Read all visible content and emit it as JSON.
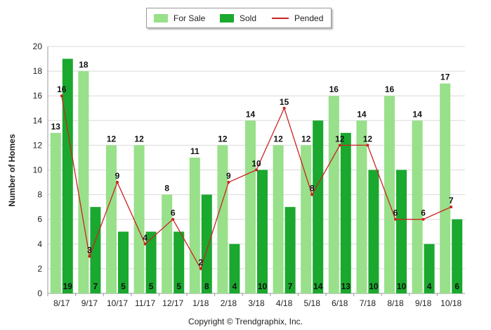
{
  "legend": {
    "for_sale": "For Sale",
    "sold": "Sold",
    "pended": "Pended"
  },
  "copyright": "Copyright © Trendgraphix, Inc.",
  "colors": {
    "for_sale": "#98e08a",
    "sold": "#1aa82e",
    "pended": "#cc2222"
  },
  "chart_data": {
    "type": "bar",
    "categories": [
      "8/17",
      "9/17",
      "10/17",
      "11/17",
      "12/17",
      "1/18",
      "2/18",
      "3/18",
      "4/18",
      "5/18",
      "6/18",
      "7/18",
      "8/18",
      "9/18",
      "10/18"
    ],
    "series": [
      {
        "name": "For Sale",
        "type": "bar",
        "values": [
          13,
          18,
          12,
          12,
          8,
          11,
          12,
          14,
          12,
          12,
          16,
          14,
          16,
          14,
          17
        ]
      },
      {
        "name": "Sold",
        "type": "bar",
        "values": [
          19,
          7,
          5,
          5,
          5,
          8,
          4,
          10,
          7,
          14,
          13,
          10,
          10,
          4,
          6
        ]
      },
      {
        "name": "Pended",
        "type": "line",
        "values": [
          16,
          3,
          9,
          4,
          6,
          2,
          9,
          10,
          15,
          8,
          12,
          12,
          6,
          6,
          7
        ]
      }
    ],
    "ylabel": "Number of Homes",
    "xlabel": "",
    "ylim": [
      0,
      20
    ],
    "yticks": [
      0,
      2,
      4,
      6,
      8,
      10,
      12,
      14,
      16,
      18,
      20
    ],
    "grid": true,
    "legend_position": "top-center"
  }
}
